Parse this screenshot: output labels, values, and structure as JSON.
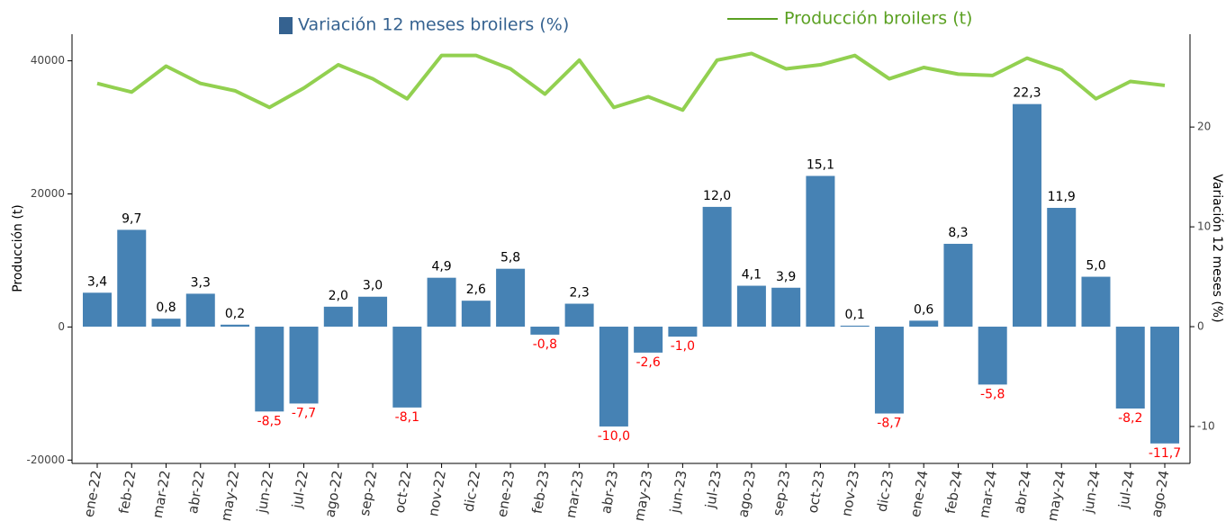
{
  "chart_data": {
    "type": "bar",
    "categories": [
      "ene-22",
      "feb-22",
      "mar-22",
      "abr-22",
      "may-22",
      "jun-22",
      "jul-22",
      "ago-22",
      "sep-22",
      "oct-22",
      "nov-22",
      "dic-22",
      "ene-23",
      "feb-23",
      "mar-23",
      "abr-23",
      "may-23",
      "jun-23",
      "jul-23",
      "ago-23",
      "sep-23",
      "oct-23",
      "nov-23",
      "dic-23",
      "ene-24",
      "feb-24",
      "mar-24",
      "abr-24",
      "may-24",
      "jun-24",
      "jul-24",
      "ago-24"
    ],
    "series": [
      {
        "name": "Variación 12 meses broilers (%)",
        "type": "bar",
        "axis": "y2",
        "color": "#4682b4",
        "values": [
          3.4,
          9.7,
          0.8,
          3.3,
          0.2,
          -8.5,
          -7.7,
          2.0,
          3.0,
          -8.1,
          4.9,
          2.6,
          5.8,
          -0.8,
          2.3,
          -10.0,
          -2.6,
          -1.0,
          12.0,
          4.1,
          3.9,
          15.1,
          0.1,
          -8.7,
          0.6,
          8.3,
          -5.8,
          22.3,
          11.9,
          5.0,
          -8.2,
          -11.7
        ],
        "value_labels": [
          "3,4",
          "9,7",
          "0,8",
          "3,3",
          "0,2",
          "-8,5",
          "-7,7",
          "2,0",
          "3,0",
          "-8,1",
          "4,9",
          "2,6",
          "5,8",
          "-0,8",
          "2,3",
          "-10,0",
          "-2,6",
          "-1,0",
          "12,0",
          "4,1",
          "3,9",
          "15,1",
          "0,1",
          "-8,7",
          "0,6",
          "8,3",
          "-5,8",
          "22,3",
          "11,9",
          "5,0",
          "-8,2",
          "-11,7"
        ],
        "label_color": "#000000",
        "negative_label_color": "#ff0000"
      },
      {
        "name": "Producción broilers (t)",
        "type": "line",
        "axis": "y",
        "color": "#92d050",
        "values": [
          36600,
          35300,
          39200,
          36600,
          35500,
          33000,
          35900,
          39400,
          37300,
          34300,
          40800,
          40800,
          38800,
          35000,
          40100,
          33000,
          34600,
          32600,
          40100,
          41100,
          38800,
          39400,
          40800,
          37300,
          39000,
          38000,
          37800,
          40400,
          38600,
          34300,
          36900,
          36300
        ]
      }
    ],
    "ylabel": "Producción (t)",
    "y2label": "Variación 12 meses (%)",
    "ylim": [
      -20500,
      44000
    ],
    "yticks": [
      -20000,
      0,
      20000,
      40000
    ],
    "y2lim": [
      -13.7,
      29.3
    ],
    "y2ticks": [
      -10,
      0,
      10,
      20
    ],
    "legend": "top"
  }
}
